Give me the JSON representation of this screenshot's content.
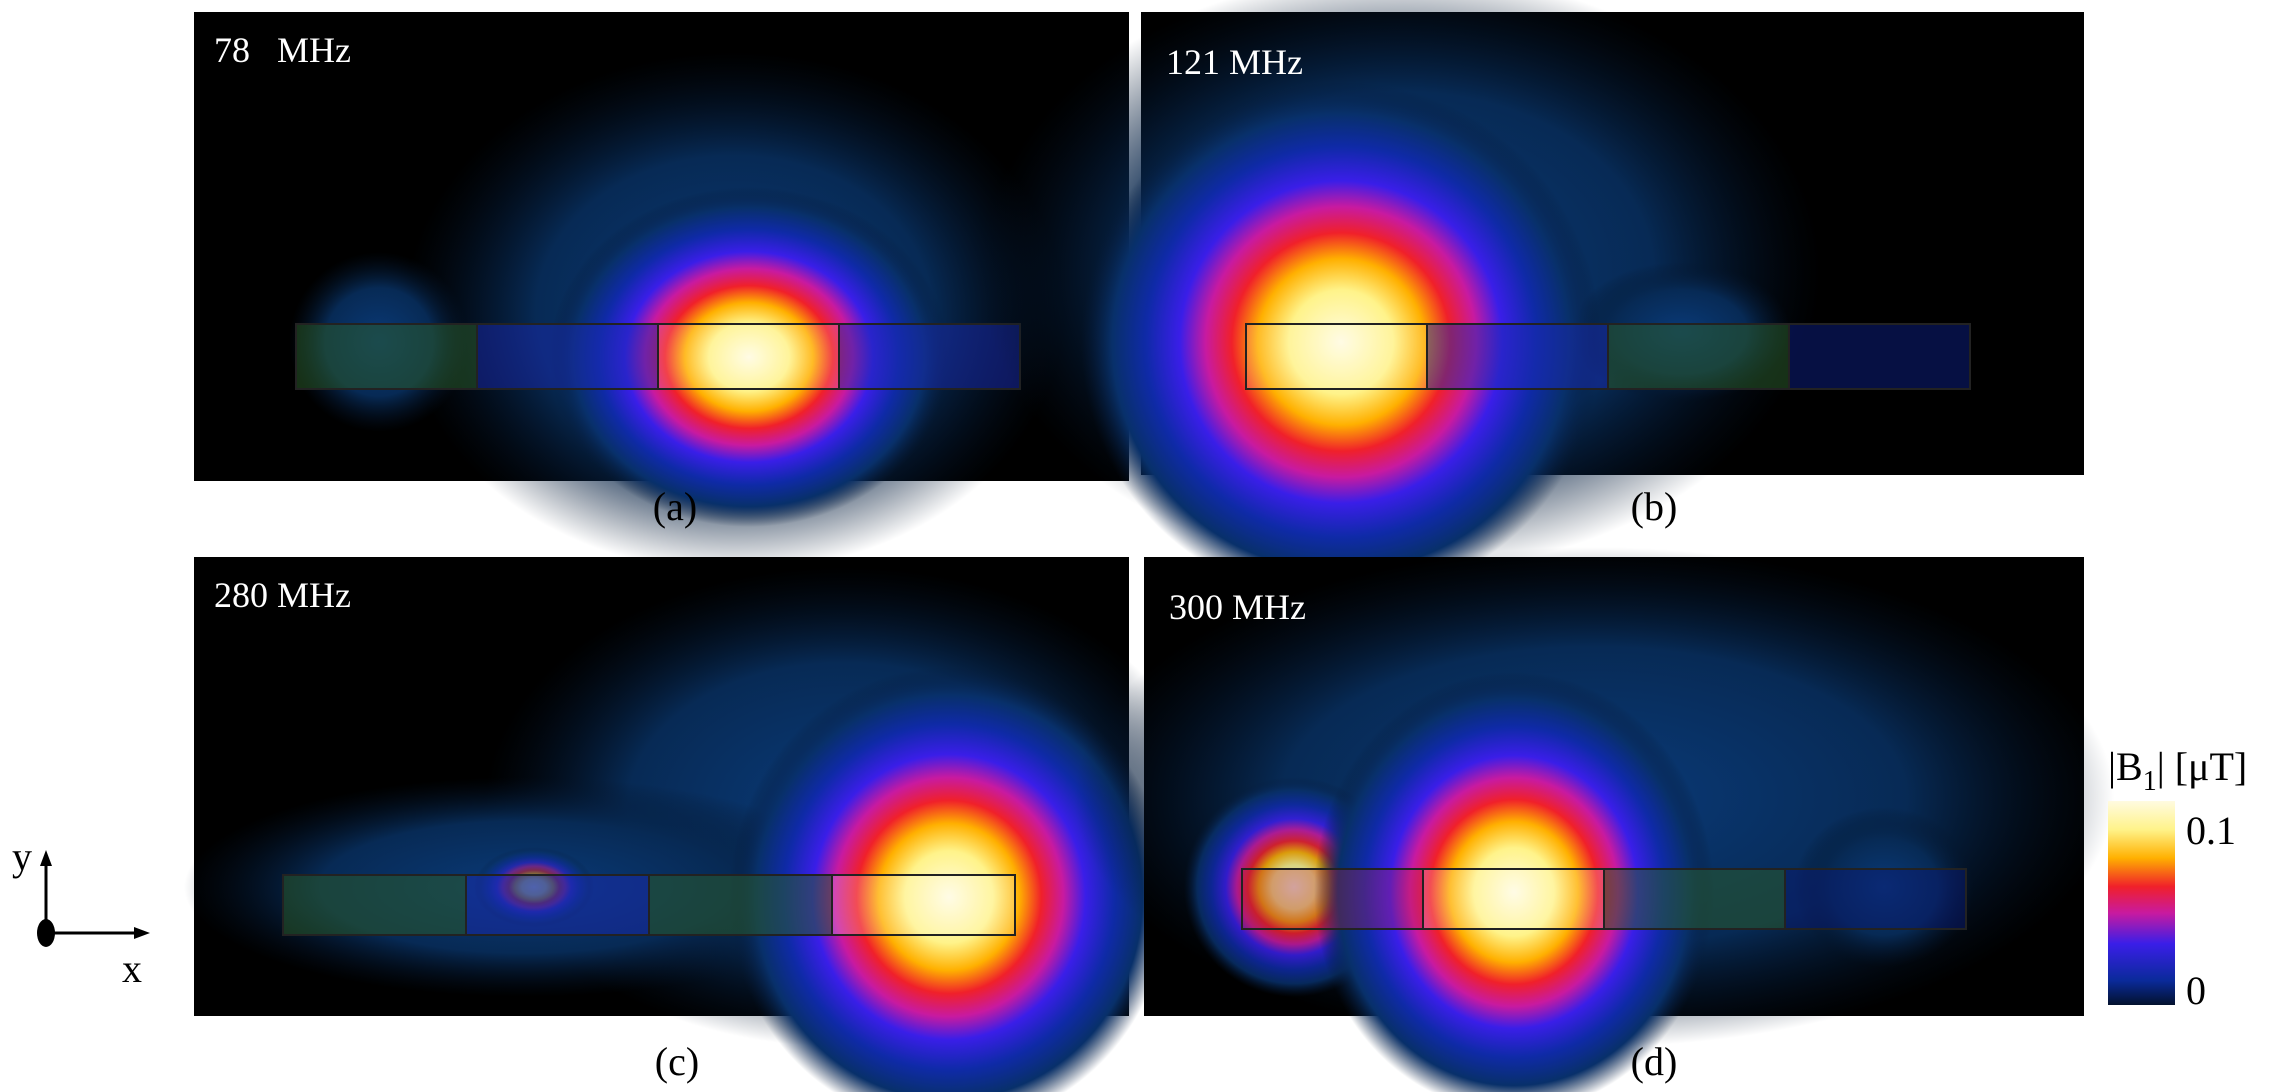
{
  "panels": [
    {
      "label": "78   MHz",
      "caption": "(a)"
    },
    {
      "label": "121 MHz",
      "caption": "(b)"
    },
    {
      "label": "280 MHz",
      "caption": "(c)"
    },
    {
      "label": "300 MHz",
      "caption": "(d)"
    }
  ],
  "colorbar": {
    "prefix": "|B",
    "subscript": "1",
    "suffix": "| [μT]",
    "ticks": [
      0.1,
      0
    ]
  },
  "axes_indicator": {
    "y": "y",
    "x": "x"
  }
}
